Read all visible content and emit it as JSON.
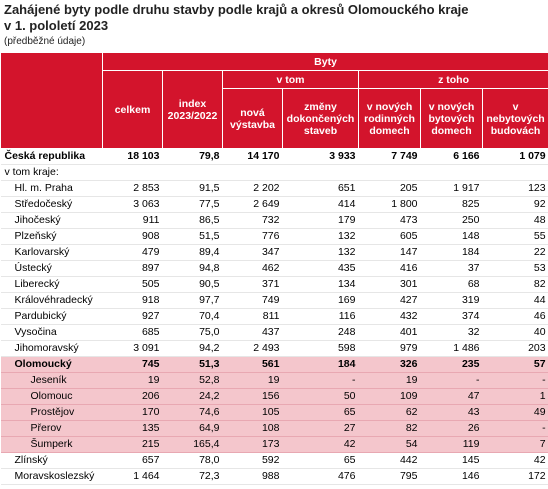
{
  "header": {
    "title_line1": "Zahájené byty podle druhu stavby podle krajů a okresů Olomouckého kraje",
    "title_line2": "v 1. pololetí 2023",
    "subtitle": "(předběžné údaje)"
  },
  "table": {
    "group": "Byty",
    "columns": {
      "celkem": "celkem",
      "index": "index 2023/2022",
      "v_tom": "v tom",
      "z_toho": "z toho",
      "nova": "nová výstavba",
      "zmeny": "změny dokončených staveb",
      "rodinne": "v nových rodinných domech",
      "bytove": "v nových bytových domech",
      "nebytove": "v nebytových budovách"
    },
    "rows": [
      [
        "Česká republika",
        "18 103",
        "79,8",
        "14 170",
        "3 933",
        "7 749",
        "6 166",
        "1 079"
      ],
      [
        "v tom kraje:"
      ],
      [
        "Hl. m. Praha",
        "2 853",
        "91,5",
        "2 202",
        "651",
        "205",
        "1 917",
        "123"
      ],
      [
        "Středočeský",
        "3 063",
        "77,5",
        "2 649",
        "414",
        "1 800",
        "825",
        "92"
      ],
      [
        "Jihočeský",
        "911",
        "86,5",
        "732",
        "179",
        "473",
        "250",
        "48"
      ],
      [
        "Plzeňský",
        "908",
        "51,5",
        "776",
        "132",
        "605",
        "148",
        "55"
      ],
      [
        "Karlovarský",
        "479",
        "89,4",
        "347",
        "132",
        "147",
        "184",
        "22"
      ],
      [
        "Ústecký",
        "897",
        "94,8",
        "462",
        "435",
        "416",
        "37",
        "53"
      ],
      [
        "Liberecký",
        "505",
        "90,5",
        "371",
        "134",
        "301",
        "68",
        "82"
      ],
      [
        "Královéhradecký",
        "918",
        "97,7",
        "749",
        "169",
        "427",
        "319",
        "44"
      ],
      [
        "Pardubický",
        "927",
        "70,4",
        "811",
        "116",
        "432",
        "374",
        "46"
      ],
      [
        "Vysočina",
        "685",
        "75,0",
        "437",
        "248",
        "401",
        "32",
        "40"
      ],
      [
        "Jihomoravský",
        "3 091",
        "94,2",
        "2 493",
        "598",
        "979",
        "1 486",
        "203"
      ],
      [
        "Olomoucký",
        "745",
        "51,3",
        "561",
        "184",
        "326",
        "235",
        "57"
      ],
      [
        "Jeseník",
        "19",
        "52,8",
        "19",
        "-",
        "19",
        "-",
        "-"
      ],
      [
        "Olomouc",
        "206",
        "24,2",
        "156",
        "50",
        "109",
        "47",
        "1"
      ],
      [
        "Prostějov",
        "170",
        "74,6",
        "105",
        "65",
        "62",
        "43",
        "49"
      ],
      [
        "Přerov",
        "135",
        "64,9",
        "108",
        "27",
        "82",
        "26",
        "-"
      ],
      [
        "Šumperk",
        "215",
        "165,4",
        "173",
        "42",
        "54",
        "119",
        "7"
      ],
      [
        "Zlínský",
        "657",
        "78,0",
        "592",
        "65",
        "442",
        "145",
        "42"
      ],
      [
        "Moravskoslezský",
        "1 464",
        "72,3",
        "988",
        "476",
        "795",
        "146",
        "172"
      ]
    ]
  }
}
